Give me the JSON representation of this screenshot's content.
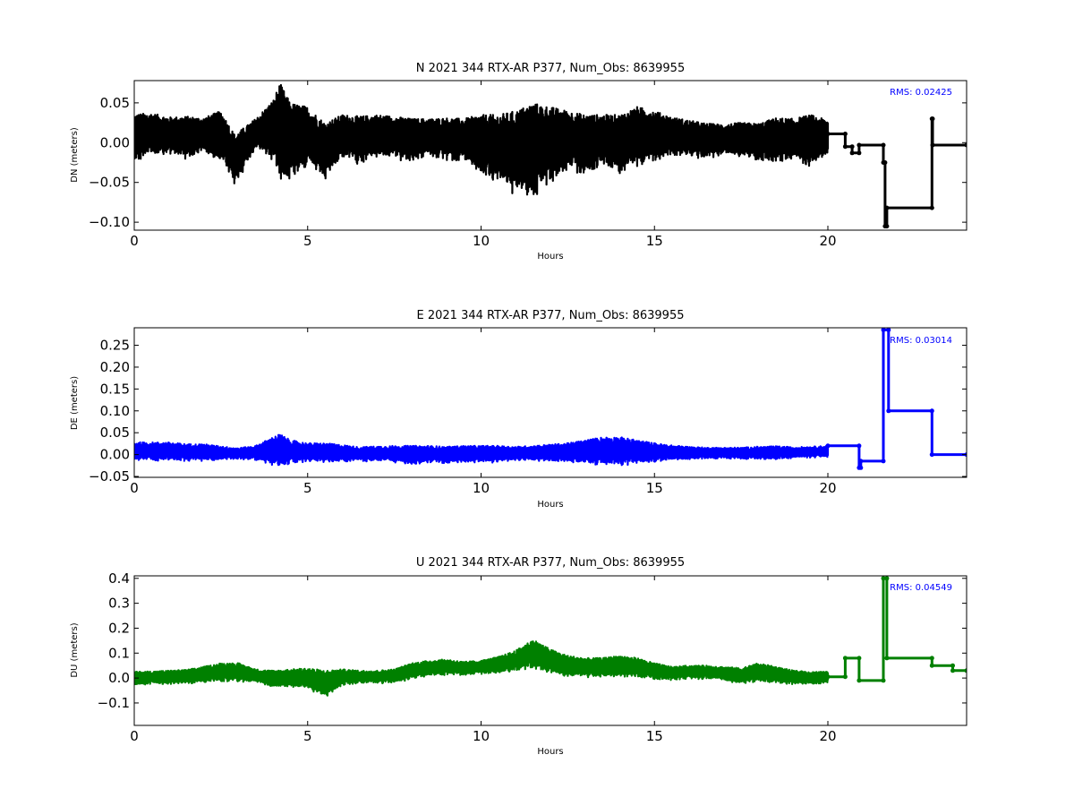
{
  "chart_data": [
    {
      "type": "line",
      "title": "N 2021 344 RTX-AR  P377, Num_Obs: 8639955",
      "xlabel": "Hours",
      "ylabel": "DN (meters)",
      "xlim": [
        0,
        24
      ],
      "ylim": [
        -0.11,
        0.078
      ],
      "xticks": [
        0,
        5,
        10,
        15,
        20
      ],
      "yticks": [
        -0.1,
        -0.05,
        0.0,
        0.05
      ],
      "ytick_labels": [
        "−0.10",
        "−0.05",
        "0.00",
        "0.05"
      ],
      "rms_label": "RMS:  0.02425",
      "color": "#000000",
      "grid": false,
      "series": [
        {
          "values": [
            [
              0,
              0.008,
              0.028
            ],
            [
              0.5,
              0.012,
              0.025
            ],
            [
              1,
              0.01,
              0.022
            ],
            [
              1.5,
              0.008,
              0.025
            ],
            [
              2,
              0.011,
              0.02
            ],
            [
              2.5,
              0.01,
              0.03
            ],
            [
              2.9,
              -0.02,
              0.03
            ],
            [
              3.5,
              0.012,
              0.018
            ],
            [
              4,
              0.018,
              0.035
            ],
            [
              4.2,
              0.02,
              0.055
            ],
            [
              4.5,
              0.005,
              0.045
            ],
            [
              5,
              0.01,
              0.035
            ],
            [
              5.5,
              -0.01,
              0.035
            ],
            [
              6,
              0.01,
              0.025
            ],
            [
              6.5,
              0.005,
              0.028
            ],
            [
              7,
              0.01,
              0.025
            ],
            [
              7.5,
              0.008,
              0.025
            ],
            [
              8,
              0.005,
              0.025
            ],
            [
              8.5,
              0.008,
              0.022
            ],
            [
              9,
              0.006,
              0.025
            ],
            [
              9.5,
              0.005,
              0.025
            ],
            [
              10,
              0.0,
              0.035
            ],
            [
              10.5,
              -0.005,
              0.04
            ],
            [
              11,
              -0.01,
              0.05
            ],
            [
              11.5,
              -0.005,
              0.055
            ],
            [
              12,
              0.0,
              0.045
            ],
            [
              12.5,
              0.005,
              0.035
            ],
            [
              13,
              0.0,
              0.035
            ],
            [
              13.5,
              0.005,
              0.03
            ],
            [
              14,
              0.0,
              0.035
            ],
            [
              14.5,
              0.01,
              0.035
            ],
            [
              15,
              0.01,
              0.03
            ],
            [
              15.5,
              0.01,
              0.022
            ],
            [
              16,
              0.006,
              0.022
            ],
            [
              16.5,
              0.004,
              0.02
            ],
            [
              17,
              0.005,
              0.018
            ],
            [
              17.5,
              0.005,
              0.02
            ],
            [
              18,
              0.002,
              0.022
            ],
            [
              18.5,
              0.006,
              0.025
            ],
            [
              19,
              0.005,
              0.025
            ],
            [
              19.5,
              0.005,
              0.03
            ],
            [
              20,
              0.008,
              0.02
            ]
          ],
          "step": [
            [
              20,
              0.011
            ],
            [
              20.5,
              0.011
            ],
            [
              20.5,
              -0.005
            ],
            [
              20.7,
              -0.005
            ],
            [
              20.7,
              -0.013
            ],
            [
              20.9,
              -0.013
            ],
            [
              20.9,
              -0.003
            ],
            [
              21.6,
              -0.003
            ],
            [
              21.6,
              -0.025
            ],
            [
              21.65,
              -0.025
            ],
            [
              21.65,
              -0.105
            ],
            [
              21.7,
              -0.105
            ],
            [
              21.7,
              -0.082
            ],
            [
              23,
              -0.082
            ],
            [
              23,
              0.03
            ],
            [
              23.02,
              0.03
            ],
            [
              23.02,
              -0.003
            ],
            [
              24,
              -0.003
            ]
          ]
        }
      ]
    },
    {
      "type": "line",
      "title": "E 2021 344 RTX-AR  P377, Num_Obs: 8639955",
      "xlabel": "Hours",
      "ylabel": "DE (meters)",
      "xlim": [
        0,
        24
      ],
      "ylim": [
        -0.052,
        0.29
      ],
      "xticks": [
        0,
        5,
        10,
        15,
        20
      ],
      "yticks": [
        -0.05,
        0.0,
        0.05,
        0.1,
        0.15,
        0.2,
        0.25
      ],
      "ytick_labels": [
        "−0.05",
        "0.00",
        "0.05",
        "0.10",
        "0.15",
        "0.20",
        "0.25"
      ],
      "rms_label": "RMS:  0.03014",
      "color": "#0000ff",
      "grid": false,
      "series": [
        {
          "values": [
            [
              0,
              0.008,
              0.02
            ],
            [
              0.5,
              0.008,
              0.02
            ],
            [
              1,
              0.008,
              0.02
            ],
            [
              1.5,
              0.006,
              0.018
            ],
            [
              2,
              0.006,
              0.018
            ],
            [
              2.5,
              0.004,
              0.015
            ],
            [
              3,
              0.003,
              0.012
            ],
            [
              3.5,
              0.005,
              0.015
            ],
            [
              4,
              0.01,
              0.03
            ],
            [
              4.2,
              0.012,
              0.035
            ],
            [
              4.5,
              0.008,
              0.025
            ],
            [
              5,
              0.006,
              0.02
            ],
            [
              5.5,
              0.006,
              0.02
            ],
            [
              6,
              0.004,
              0.018
            ],
            [
              6.5,
              0.002,
              0.015
            ],
            [
              7,
              0.003,
              0.016
            ],
            [
              7.5,
              0.002,
              0.018
            ],
            [
              8,
              0.0,
              0.02
            ],
            [
              8.5,
              0.002,
              0.018
            ],
            [
              9,
              0.0,
              0.018
            ],
            [
              9.5,
              0.002,
              0.018
            ],
            [
              10,
              0.003,
              0.017
            ],
            [
              10.5,
              0.002,
              0.018
            ],
            [
              11,
              0.003,
              0.015
            ],
            [
              11.5,
              0.004,
              0.016
            ],
            [
              12,
              0.005,
              0.018
            ],
            [
              12.5,
              0.006,
              0.02
            ],
            [
              13,
              0.008,
              0.025
            ],
            [
              13.5,
              0.01,
              0.03
            ],
            [
              14,
              0.01,
              0.03
            ],
            [
              14.5,
              0.008,
              0.025
            ],
            [
              15,
              0.006,
              0.02
            ],
            [
              15.5,
              0.005,
              0.016
            ],
            [
              16,
              0.004,
              0.014
            ],
            [
              16.5,
              0.004,
              0.012
            ],
            [
              17,
              0.004,
              0.012
            ],
            [
              17.5,
              0.004,
              0.012
            ],
            [
              18,
              0.004,
              0.014
            ],
            [
              18.5,
              0.005,
              0.014
            ],
            [
              19,
              0.005,
              0.012
            ],
            [
              19.5,
              0.006,
              0.012
            ],
            [
              20,
              0.008,
              0.012
            ]
          ],
          "step": [
            [
              20,
              0.02
            ],
            [
              20.9,
              0.02
            ],
            [
              20.9,
              -0.03
            ],
            [
              20.95,
              -0.03
            ],
            [
              20.95,
              -0.015
            ],
            [
              21.6,
              -0.015
            ],
            [
              21.6,
              0.285
            ],
            [
              21.75,
              0.285
            ],
            [
              21.75,
              0.1
            ],
            [
              23,
              0.1
            ],
            [
              23,
              0.0
            ],
            [
              24,
              0.0
            ]
          ]
        }
      ]
    },
    {
      "type": "line",
      "title": "U 2021 344 RTX-AR  P377, Num_Obs: 8639955",
      "xlabel": "Hours",
      "ylabel": "DU (meters)",
      "xlim": [
        0,
        24
      ],
      "ylim": [
        -0.19,
        0.41
      ],
      "xticks": [
        0,
        5,
        10,
        15,
        20
      ],
      "yticks": [
        -0.1,
        0.0,
        0.1,
        0.2,
        0.3,
        0.4
      ],
      "ytick_labels": [
        "−0.1",
        "0.0",
        "0.1",
        "0.2",
        "0.3",
        "0.4"
      ],
      "rms_label": "RMS:  0.04549",
      "color": "#008000",
      "grid": false,
      "series": [
        {
          "values": [
            [
              0,
              0.0,
              0.025
            ],
            [
              0.5,
              0.002,
              0.025
            ],
            [
              1,
              0.005,
              0.025
            ],
            [
              1.5,
              0.008,
              0.025
            ],
            [
              2,
              0.015,
              0.03
            ],
            [
              2.5,
              0.025,
              0.035
            ],
            [
              3,
              0.025,
              0.035
            ],
            [
              3.5,
              0.01,
              0.025
            ],
            [
              4,
              0.0,
              0.03
            ],
            [
              4.5,
              0.0,
              0.035
            ],
            [
              5,
              0.0,
              0.04
            ],
            [
              5.5,
              -0.02,
              0.05
            ],
            [
              6,
              0.005,
              0.03
            ],
            [
              6.5,
              0.005,
              0.025
            ],
            [
              7,
              0.005,
              0.025
            ],
            [
              7.5,
              0.01,
              0.025
            ],
            [
              8,
              0.03,
              0.03
            ],
            [
              8.5,
              0.04,
              0.03
            ],
            [
              9,
              0.045,
              0.03
            ],
            [
              9.5,
              0.04,
              0.025
            ],
            [
              10,
              0.045,
              0.025
            ],
            [
              10.5,
              0.055,
              0.03
            ],
            [
              11,
              0.07,
              0.04
            ],
            [
              11.5,
              0.1,
              0.055
            ],
            [
              12,
              0.07,
              0.045
            ],
            [
              12.5,
              0.05,
              0.04
            ],
            [
              13,
              0.045,
              0.035
            ],
            [
              13.5,
              0.045,
              0.035
            ],
            [
              14,
              0.05,
              0.04
            ],
            [
              14.5,
              0.045,
              0.035
            ],
            [
              15,
              0.03,
              0.03
            ],
            [
              15.5,
              0.02,
              0.025
            ],
            [
              16,
              0.025,
              0.025
            ],
            [
              16.5,
              0.025,
              0.025
            ],
            [
              17,
              0.02,
              0.025
            ],
            [
              17.5,
              0.01,
              0.03
            ],
            [
              18,
              0.025,
              0.035
            ],
            [
              18.5,
              0.015,
              0.03
            ],
            [
              19,
              0.005,
              0.025
            ],
            [
              19.5,
              0.0,
              0.025
            ],
            [
              20,
              0.005,
              0.02
            ]
          ],
          "step": [
            [
              20,
              0.005
            ],
            [
              20.5,
              0.005
            ],
            [
              20.5,
              0.08
            ],
            [
              20.9,
              0.08
            ],
            [
              20.9,
              -0.01
            ],
            [
              21.6,
              -0.01
            ],
            [
              21.6,
              0.4
            ],
            [
              21.7,
              0.4
            ],
            [
              21.7,
              0.08
            ],
            [
              23,
              0.08
            ],
            [
              23,
              0.05
            ],
            [
              23.6,
              0.05
            ],
            [
              23.6,
              0.03
            ],
            [
              24,
              0.03
            ]
          ]
        }
      ]
    }
  ]
}
